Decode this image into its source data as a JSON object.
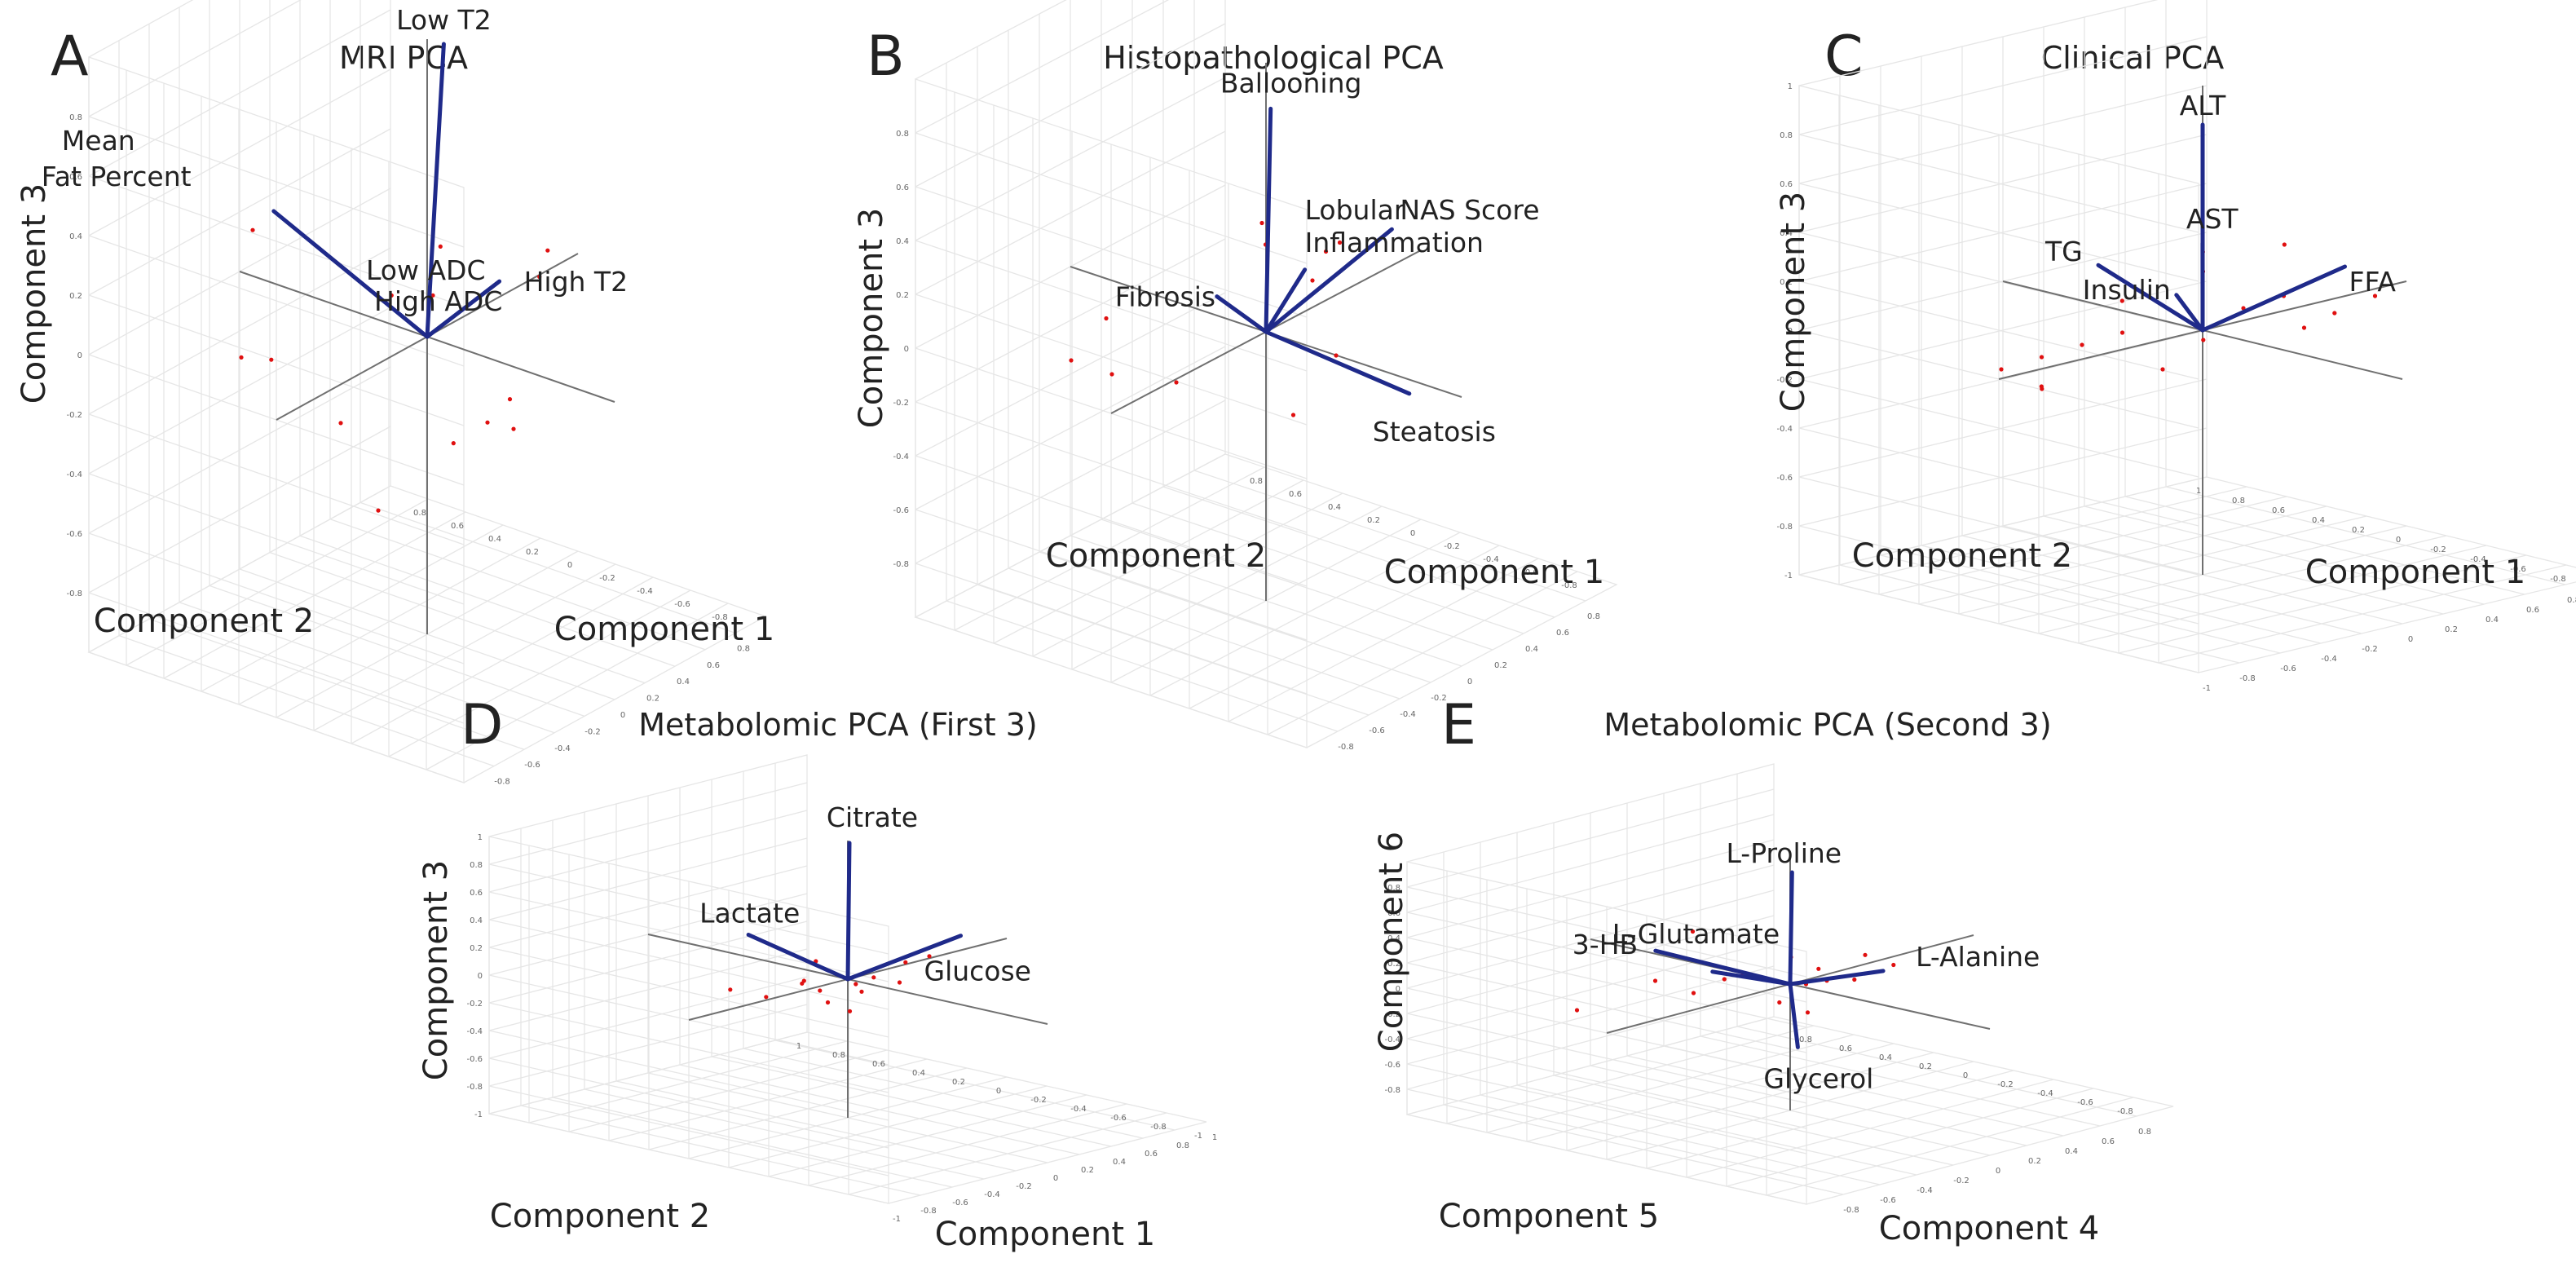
{
  "chart_data": [
    {
      "type": "scatter",
      "letter": "A",
      "title": "MRI PCA",
      "xlabel": "Component 1",
      "ylabel": "Component 2",
      "zlabel": "Component 3",
      "xlim": [
        -1,
        1
      ],
      "ylim": [
        -1,
        1
      ],
      "zlim": [
        -1,
        1
      ],
      "ticks": [
        "-0.8",
        "-0.6",
        "-0.4",
        "-0.2",
        "0",
        "0.2",
        "0.4",
        "0.6",
        "0.8"
      ],
      "vectors": [
        {
          "name": "Low T2",
          "x": 0.16,
          "y": 0.04,
          "z": 0.93
        },
        {
          "name": "High T2",
          "x": 0.33,
          "y": -0.12,
          "z": 0.12
        },
        {
          "name": "Mean Fat Percent",
          "x": -0.06,
          "y": 0.77,
          "z": 0.27
        },
        {
          "name": "Low ADC",
          "x": 0.0,
          "y": 0.0,
          "z": 0.0
        },
        {
          "name": "High ADC",
          "x": 0.0,
          "y": 0.0,
          "z": 0.0
        }
      ],
      "points": [
        {
          "x": 0.55,
          "y": -0.2,
          "z": 0.18
        },
        {
          "x": 0.62,
          "y": -0.1,
          "z": 0.05
        },
        {
          "x": 0.1,
          "y": 0.05,
          "z": 0.1
        },
        {
          "x": -0.05,
          "y": 0.15,
          "z": 0.12
        },
        {
          "x": 0.3,
          "y": -0.2,
          "z": -0.25
        },
        {
          "x": 0.2,
          "y": -0.3,
          "z": -0.3
        },
        {
          "x": 0.05,
          "y": -0.1,
          "z": -0.35
        },
        {
          "x": -0.2,
          "y": 0.3,
          "z": -0.3
        },
        {
          "x": -0.35,
          "y": 0.55,
          "z": -0.1
        },
        {
          "x": -0.3,
          "y": 0.75,
          "z": -0.15
        },
        {
          "x": -0.1,
          "y": 0.85,
          "z": 0.2
        },
        {
          "x": 0.4,
          "y": 0.0,
          "z": -0.4
        },
        {
          "x": -0.2,
          "y": 0.1,
          "z": -0.55
        },
        {
          "x": 0.15,
          "y": 0.05,
          "z": 0.25
        }
      ]
    },
    {
      "type": "scatter",
      "letter": "B",
      "title": "Histopathological PCA",
      "xlabel": "Component 1",
      "ylabel": "Component 2",
      "zlabel": "Component 3",
      "xlim": [
        -1,
        1
      ],
      "ylim": [
        -1,
        1
      ],
      "zlim": [
        -1,
        1
      ],
      "ticks": [
        "-0.8",
        "-0.6",
        "-0.4",
        "-0.2",
        "0",
        "0.2",
        "0.4",
        "0.6",
        "0.8"
      ],
      "vectors": [
        {
          "name": "Ballooning",
          "x": 0.03,
          "y": 0.0,
          "z": 0.82
        },
        {
          "name": "NAS Score",
          "x": 0.56,
          "y": -0.2,
          "z": 0.26
        },
        {
          "name": "Lobular Inflammation",
          "x": 0.2,
          "y": -0.04,
          "z": 0.18
        },
        {
          "name": "Fibrosis",
          "x": -0.14,
          "y": 0.14,
          "z": 0.14
        },
        {
          "name": "Steatosis",
          "x": 0.42,
          "y": -0.4,
          "z": -0.26
        }
      ],
      "points": [
        {
          "x": 0.35,
          "y": -0.1,
          "z": 0.25
        },
        {
          "x": 0.45,
          "y": 0.05,
          "z": 0.15
        },
        {
          "x": -0.4,
          "y": 0.5,
          "z": 0.05
        },
        {
          "x": -0.5,
          "y": 0.6,
          "z": -0.1
        },
        {
          "x": -0.3,
          "y": 0.55,
          "z": -0.2
        },
        {
          "x": 0.1,
          "y": 0.1,
          "z": 0.35
        },
        {
          "x": 0.2,
          "y": -0.2,
          "z": -0.1
        },
        {
          "x": 0.05,
          "y": -0.1,
          "z": -0.3
        },
        {
          "x": 0.3,
          "y": 0.0,
          "z": 0.1
        },
        {
          "x": -0.2,
          "y": 0.3,
          "z": -0.2
        },
        {
          "x": 0.25,
          "y": 0.2,
          "z": 0.2
        }
      ]
    },
    {
      "type": "scatter",
      "letter": "C",
      "title": "Clinical PCA",
      "xlabel": "Component 1",
      "ylabel": "Component 2",
      "zlabel": "Component 3",
      "xlim": [
        -1,
        1
      ],
      "ylim": [
        -1,
        1
      ],
      "zlim": [
        -1,
        1
      ],
      "ticks": [
        "-1",
        "-0.8",
        "-0.6",
        "-0.4",
        "-0.2",
        "0",
        "0.2",
        "0.4",
        "0.6",
        "0.8",
        "1"
      ],
      "vectors": [
        {
          "name": "ALT",
          "x": 0.0,
          "y": 0.0,
          "z": 0.84
        },
        {
          "name": "AST",
          "x": -0.01,
          "y": -0.01,
          "z": 0.36
        },
        {
          "name": "TG",
          "x": -0.12,
          "y": 0.4,
          "z": 0.21
        },
        {
          "name": "Insulin",
          "x": -0.08,
          "y": 0.05,
          "z": 0.15
        },
        {
          "name": "FFA",
          "x": 0.6,
          "y": -0.1,
          "z": 0.16
        }
      ],
      "points": [
        {
          "x": -0.3,
          "y": 0.5,
          "z": -0.15
        },
        {
          "x": -0.4,
          "y": 0.6,
          "z": -0.2
        },
        {
          "x": -0.35,
          "y": 0.45,
          "z": -0.25
        },
        {
          "x": -0.25,
          "y": 0.55,
          "z": -0.3
        },
        {
          "x": -0.2,
          "y": 0.4,
          "z": -0.1
        },
        {
          "x": -0.1,
          "y": 0.3,
          "z": -0.05
        },
        {
          "x": 0.0,
          "y": 0.2,
          "z": -0.2
        },
        {
          "x": 0.2,
          "y": 0.0,
          "z": 0.05
        },
        {
          "x": 0.3,
          "y": -0.1,
          "z": 0.1
        },
        {
          "x": 0.4,
          "y": -0.1,
          "z": -0.05
        },
        {
          "x": 0.5,
          "y": -0.15,
          "z": 0.0
        },
        {
          "x": 0.65,
          "y": -0.2,
          "z": 0.05
        },
        {
          "x": 0.1,
          "y": 0.1,
          "z": 0.2
        },
        {
          "x": 0.05,
          "y": 0.05,
          "z": 0.3
        },
        {
          "x": -0.15,
          "y": 0.25,
          "z": 0.1
        },
        {
          "x": 0.45,
          "y": 0.05,
          "z": 0.25
        },
        {
          "x": 0.15,
          "y": 0.15,
          "z": -0.1
        }
      ]
    },
    {
      "type": "scatter",
      "letter": "D",
      "title": "Metabolomic PCA (First 3)",
      "xlabel": "Component 1",
      "ylabel": "Component 2",
      "zlabel": "Component 3",
      "xlim": [
        -1,
        1
      ],
      "ylim": [
        -1,
        1
      ],
      "zlim": [
        -1,
        1
      ],
      "ticks": [
        "-1",
        "-0.8",
        "-0.6",
        "-0.4",
        "-0.2",
        "0",
        "0.2",
        "0.4",
        "0.6",
        "0.8",
        "1"
      ],
      "vectors": [
        {
          "name": "Citrate",
          "x": 0.01,
          "y": 0.0,
          "z": 0.98
        },
        {
          "name": "Lactate",
          "x": -0.11,
          "y": 0.41,
          "z": 0.22
        },
        {
          "name": "Glucose",
          "x": 0.61,
          "y": -0.08,
          "z": 0.16
        }
      ],
      "points": [
        {
          "x": -0.1,
          "y": 0.15,
          "z": -0.05
        },
        {
          "x": -0.05,
          "y": 0.1,
          "z": -0.1
        },
        {
          "x": 0.05,
          "y": 0.0,
          "z": -0.05
        },
        {
          "x": 0.1,
          "y": -0.05,
          "z": 0.0
        },
        {
          "x": -0.2,
          "y": 0.25,
          "z": -0.15
        },
        {
          "x": 0.15,
          "y": 0.05,
          "z": -0.15
        },
        {
          "x": 0.0,
          "y": 0.1,
          "z": -0.2
        },
        {
          "x": -0.15,
          "y": 0.1,
          "z": 0.0
        },
        {
          "x": 0.2,
          "y": -0.1,
          "z": -0.05
        },
        {
          "x": 0.3,
          "y": -0.05,
          "z": 0.05
        },
        {
          "x": -0.3,
          "y": 0.35,
          "z": -0.1
        },
        {
          "x": 0.05,
          "y": 0.2,
          "z": 0.05
        },
        {
          "x": 0.45,
          "y": -0.05,
          "z": 0.05
        },
        {
          "x": -0.05,
          "y": -0.05,
          "z": -0.2
        }
      ]
    },
    {
      "type": "scatter",
      "letter": "E",
      "title": "Metabolomic PCA (Second 3)",
      "xlabel": "Component 4",
      "ylabel": "Component 5",
      "zlabel": "Component 6",
      "xlim": [
        -1,
        1
      ],
      "ylim": [
        -1,
        1
      ],
      "zlim": [
        -1,
        1
      ],
      "ticks": [
        "-0.8",
        "-0.6",
        "-0.4",
        "-0.2",
        "0",
        "0.2",
        "0.4",
        "0.6",
        "0.8"
      ],
      "vectors": [
        {
          "name": "L-Proline",
          "x": 0.01,
          "y": 0.0,
          "z": 0.88
        },
        {
          "name": "L-Glutamate",
          "x": -0.14,
          "y": 0.26,
          "z": 0.06
        },
        {
          "name": "3-HB",
          "x": -0.19,
          "y": 0.5,
          "z": 0.16
        },
        {
          "name": "L-Alanine",
          "x": 0.42,
          "y": -0.08,
          "z": -0.03
        },
        {
          "name": "Glycerol",
          "x": 0.02,
          "y": -0.02,
          "z": -0.5
        }
      ],
      "points": [
        {
          "x": -0.1,
          "y": 0.15,
          "z": 0.05
        },
        {
          "x": 0.1,
          "y": -0.05,
          "z": 0.1
        },
        {
          "x": 0.2,
          "y": 0.0,
          "z": -0.05
        },
        {
          "x": 0.3,
          "y": -0.1,
          "z": 0.15
        },
        {
          "x": -0.2,
          "y": 0.3,
          "z": -0.1
        },
        {
          "x": -0.3,
          "y": 0.4,
          "z": 0.0
        },
        {
          "x": 0.05,
          "y": 0.1,
          "z": -0.2
        },
        {
          "x": 0.15,
          "y": 0.05,
          "z": -0.3
        },
        {
          "x": -0.05,
          "y": -0.05,
          "z": 0.25
        },
        {
          "x": 0.4,
          "y": -0.15,
          "z": 0.05
        },
        {
          "x": -0.4,
          "y": 0.7,
          "z": -0.3
        },
        {
          "x": -0.15,
          "y": 0.35,
          "z": 0.35
        },
        {
          "x": 0.25,
          "y": 0.15,
          "z": -0.15
        },
        {
          "x": 0.0,
          "y": 0.2,
          "z": 0.0
        },
        {
          "x": 0.35,
          "y": 0.0,
          "z": -0.1
        },
        {
          "x": -0.25,
          "y": 0.1,
          "z": 0.1
        }
      ]
    }
  ]
}
